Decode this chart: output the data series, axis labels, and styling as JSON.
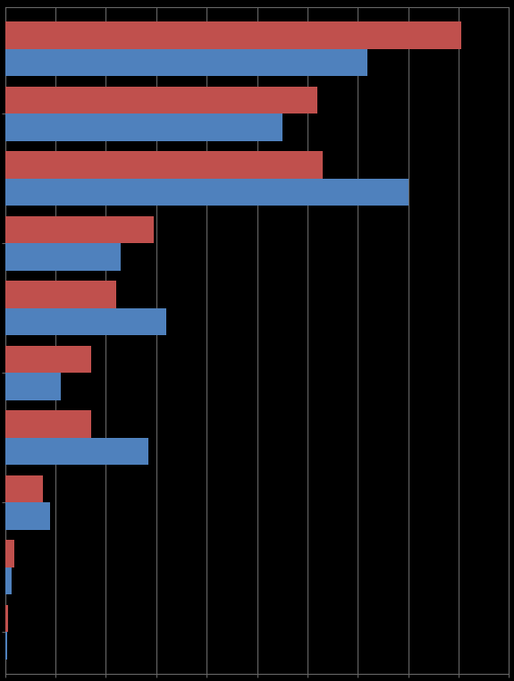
{
  "red_values": [
    90.5,
    62.0,
    63.0,
    29.5,
    22.0,
    17.0,
    17.0,
    7.5,
    1.8,
    0.5
  ],
  "blue_values": [
    72.0,
    55.0,
    80.0,
    23.0,
    32.0,
    11.0,
    28.5,
    9.0,
    1.2,
    0.4
  ],
  "red_color": "#C0504D",
  "blue_color": "#4F81BD",
  "background_color": "#000000",
  "grid_color": "#666666",
  "xlim_max": 100,
  "bar_height": 0.42,
  "figsize": [
    5.75,
    7.62
  ],
  "dpi": 100,
  "n_groups": 10
}
